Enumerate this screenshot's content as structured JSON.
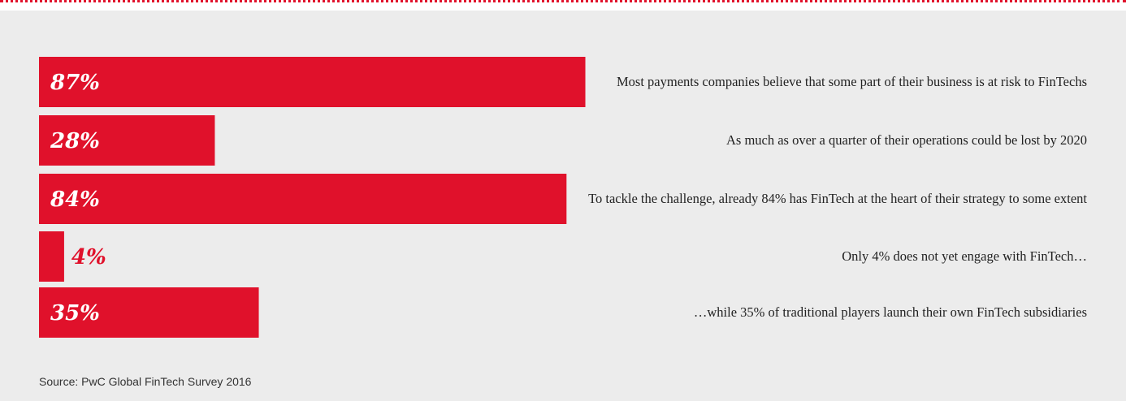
{
  "colors": {
    "bar": "#e0112b",
    "panel": "#ececec",
    "text": "#222222"
  },
  "chart_data": {
    "type": "bar",
    "orientation": "horizontal",
    "xlim": [
      0,
      100
    ],
    "bars": [
      {
        "value": 87,
        "label": "87%",
        "description": "Most payments companies believe that some part of their business is at risk to FinTechs"
      },
      {
        "value": 28,
        "label": "28%",
        "description": "As much as over a quarter of their operations could be lost by 2020"
      },
      {
        "value": 84,
        "label": "84%",
        "description": "To tackle the challenge, already 84% has FinTech at the heart of their strategy to some extent"
      },
      {
        "value": 4,
        "label": "4%",
        "description": "Only 4% does not yet engage with FinTech…"
      },
      {
        "value": 35,
        "label": "35%",
        "description": "…while 35% of traditional players launch their own FinTech subsidiaries"
      }
    ]
  },
  "source": "Source: PwC Global FinTech Survey 2016"
}
